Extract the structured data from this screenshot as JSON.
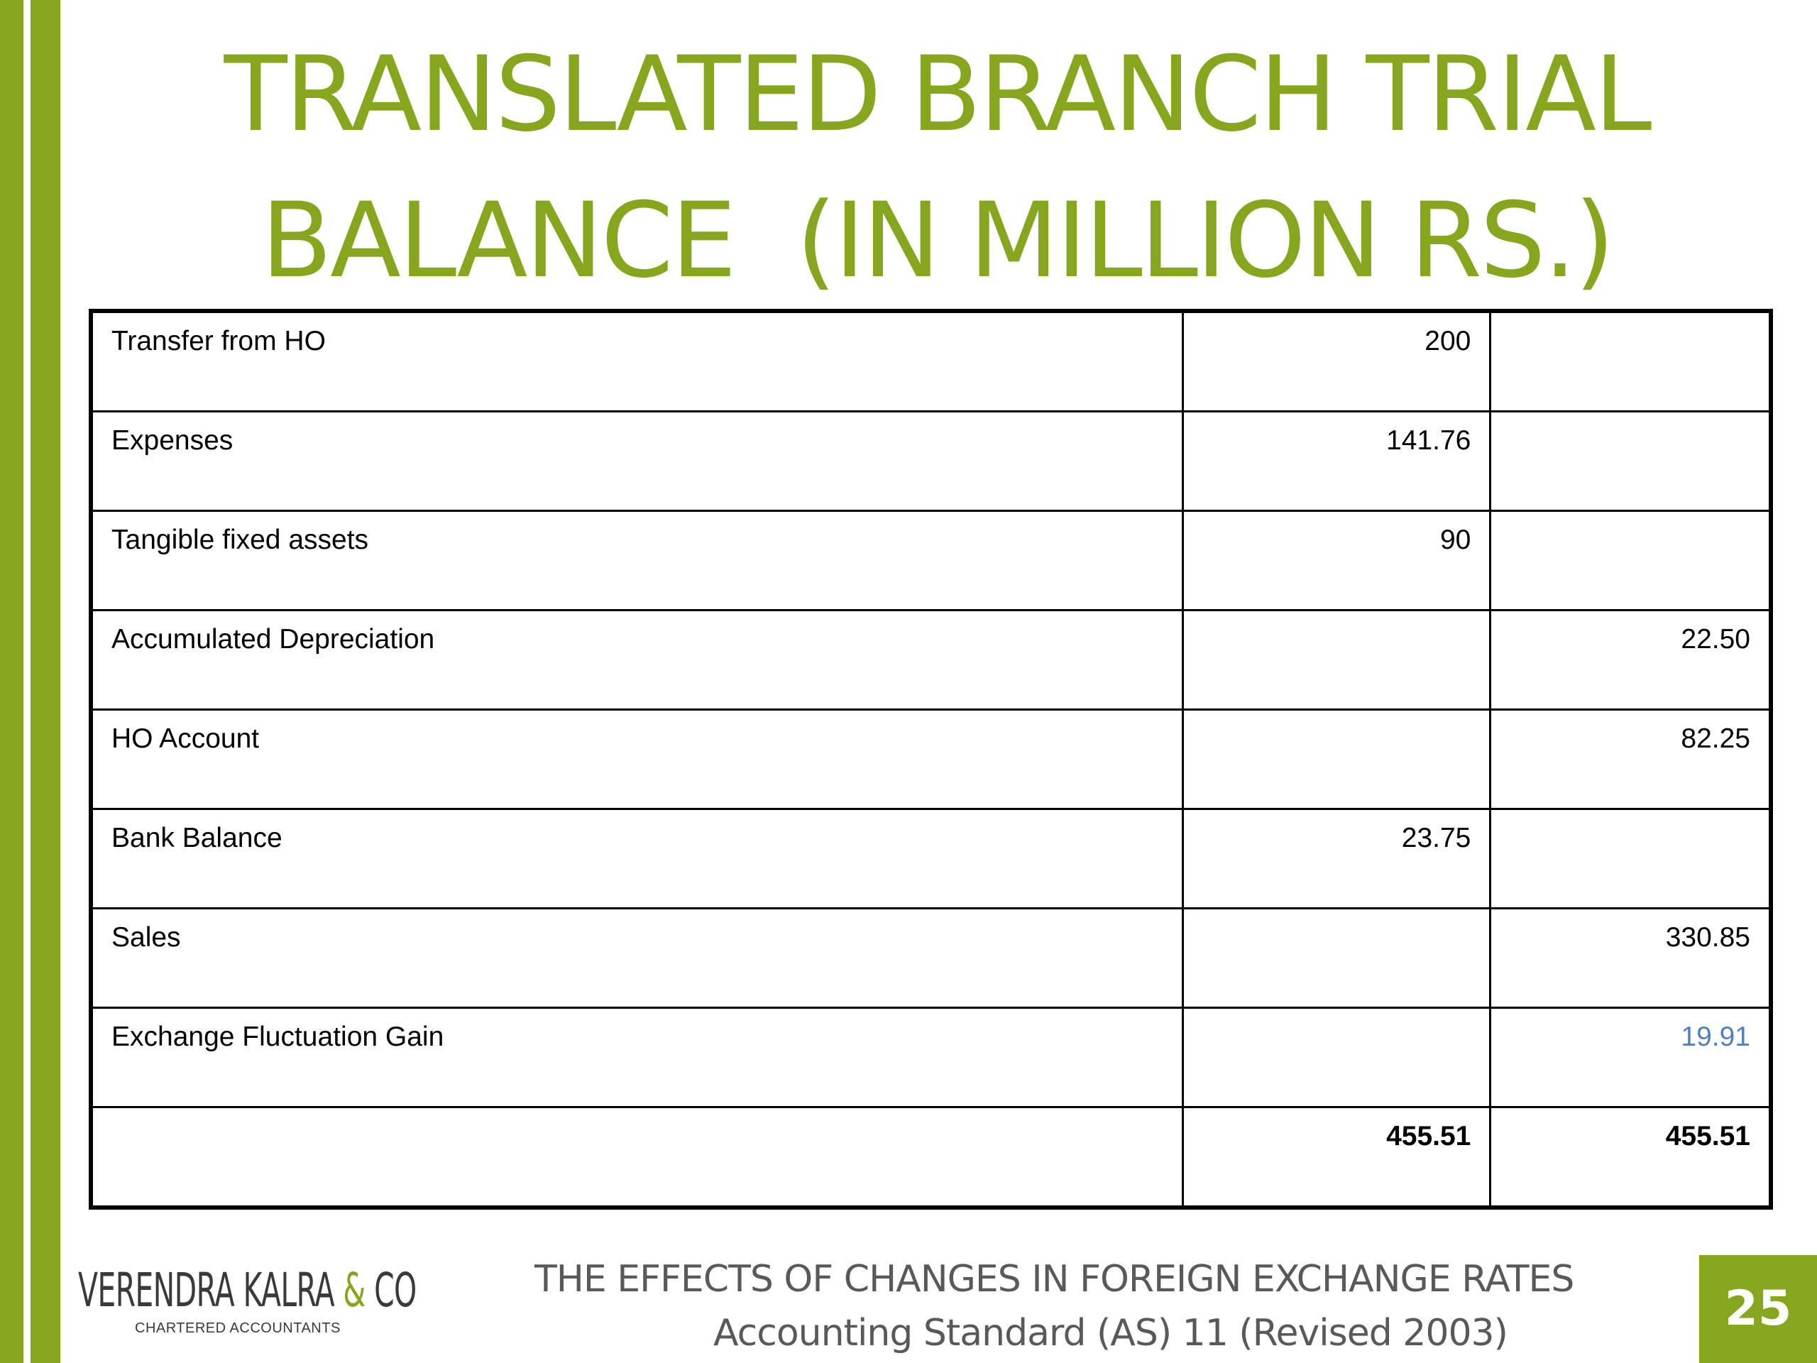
{
  "slide": {
    "title_line1": "TRANSLATED BRANCH TRIAL",
    "title_line2": "BALANCE  (IN MILLION RS.)",
    "page_number": "25"
  },
  "table": {
    "rows": [
      {
        "label": "Transfer from HO",
        "debit": "200",
        "credit": ""
      },
      {
        "label": "Expenses",
        "debit": "141.76",
        "credit": ""
      },
      {
        "label": "Tangible fixed assets",
        "debit": "90",
        "credit": ""
      },
      {
        "label": "Accumulated Depreciation",
        "debit": "",
        "credit": "22.50"
      },
      {
        "label": "HO Account",
        "debit": "",
        "credit": "82.25"
      },
      {
        "label": "Bank Balance",
        "debit": "23.75",
        "credit": ""
      },
      {
        "label": "Sales",
        "debit": "",
        "credit": "330.85"
      },
      {
        "label": "Exchange Fluctuation Gain",
        "debit": "",
        "credit": "19.91"
      },
      {
        "label": "",
        "debit": "455.51",
        "credit": "455.51"
      }
    ]
  },
  "footer": {
    "line1": "THE EFFECTS OF CHANGES IN FOREIGN EXCHANGE RATES",
    "line2": "Accounting Standard (AS) 11 (Revised 2003)"
  },
  "logo": {
    "name_part1": "VERENDRA KALRA ",
    "name_amp": "&",
    "name_part2": " CO",
    "subtitle": "CHARTERED ACCOUNTANTS"
  },
  "colors": {
    "accent": "#86a61e",
    "highlight_value": "#4f81bd",
    "footer_text": "#595959"
  }
}
